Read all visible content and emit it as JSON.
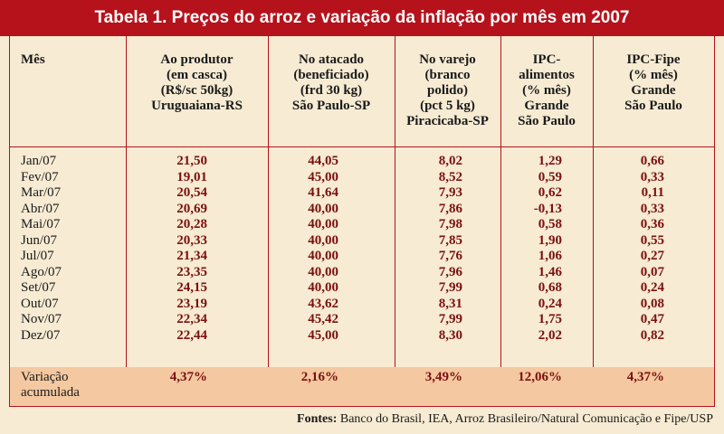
{
  "title": "Tabela 1. Preços do arroz e variação da inflação por mês em 2007",
  "headers": {
    "mes": [
      "Mês"
    ],
    "produtor": [
      "Ao produtor",
      "(em casca)",
      "(R$/sc 50kg)",
      "Uruguaiana-RS"
    ],
    "atacado": [
      "No atacado",
      "(beneficiado)",
      "(frd 30 kg)",
      "São Paulo-SP"
    ],
    "varejo": [
      "No varejo",
      "(branco",
      "polido)",
      "(pct 5 kg)",
      "Piracicaba-SP"
    ],
    "ipc_alimentos": [
      "IPC-",
      "alimentos",
      "(% mês)",
      "Grande",
      "São Paulo"
    ],
    "ipc_fipe": [
      "IPC-Fipe",
      "(% mês)",
      "Grande",
      "São Paulo"
    ]
  },
  "rows": [
    {
      "mes": "Jan/07",
      "produtor": "21,50",
      "atacado": "44,05",
      "varejo": "8,02",
      "ipc_alimentos": "1,29",
      "ipc_fipe": "0,66"
    },
    {
      "mes": "Fev/07",
      "produtor": "19,01",
      "atacado": "45,00",
      "varejo": "8,52",
      "ipc_alimentos": "0,59",
      "ipc_fipe": "0,33"
    },
    {
      "mes": "Mar/07",
      "produtor": "20,54",
      "atacado": "41,64",
      "varejo": "7,93",
      "ipc_alimentos": "0,62",
      "ipc_fipe": "0,11"
    },
    {
      "mes": "Abr/07",
      "produtor": "20,69",
      "atacado": "40,00",
      "varejo": "7,86",
      "ipc_alimentos": "-0,13",
      "ipc_fipe": "0,33"
    },
    {
      "mes": "Mai/07",
      "produtor": "20,28",
      "atacado": "40,00",
      "varejo": "7,98",
      "ipc_alimentos": "0,58",
      "ipc_fipe": "0,36"
    },
    {
      "mes": "Jun/07",
      "produtor": "20,33",
      "atacado": "40,00",
      "varejo": "7,85",
      "ipc_alimentos": "1,90",
      "ipc_fipe": "0,55"
    },
    {
      "mes": "Jul/07",
      "produtor": "21,34",
      "atacado": "40,00",
      "varejo": "7,76",
      "ipc_alimentos": "1,06",
      "ipc_fipe": "0,27"
    },
    {
      "mes": "Ago/07",
      "produtor": "23,35",
      "atacado": "40,00",
      "varejo": "7,96",
      "ipc_alimentos": "1,46",
      "ipc_fipe": "0,07"
    },
    {
      "mes": "Set/07",
      "produtor": "24,15",
      "atacado": "40,00",
      "varejo": "7,99",
      "ipc_alimentos": "0,68",
      "ipc_fipe": "0,24"
    },
    {
      "mes": "Out/07",
      "produtor": "23,19",
      "atacado": "43,62",
      "varejo": "8,31",
      "ipc_alimentos": "0,24",
      "ipc_fipe": "0,08"
    },
    {
      "mes": "Nov/07",
      "produtor": "22,34",
      "atacado": "45,42",
      "varejo": "7,99",
      "ipc_alimentos": "1,75",
      "ipc_fipe": "0,47"
    },
    {
      "mes": "Dez/07",
      "produtor": "22,44",
      "atacado": "45,00",
      "varejo": "8,30",
      "ipc_alimentos": "2,02",
      "ipc_fipe": "0,82"
    }
  ],
  "footer": {
    "label": [
      "Variação",
      "acumulada"
    ],
    "produtor": "4,37%",
    "atacado": "2,16%",
    "varejo": "3,49%",
    "ipc_alimentos": "12,06%",
    "ipc_fipe": "4,37%"
  },
  "sources": {
    "label": "Fontes:",
    "text": "Banco do Brasil, IEA, Arroz Brasileiro/Natural Comunicação e Fipe/USP"
  },
  "colors": {
    "title_bg": "#b5121b",
    "background": "#f7ebd3",
    "footer_bg": "#f4c8a0",
    "value_text": "#7a1010"
  }
}
